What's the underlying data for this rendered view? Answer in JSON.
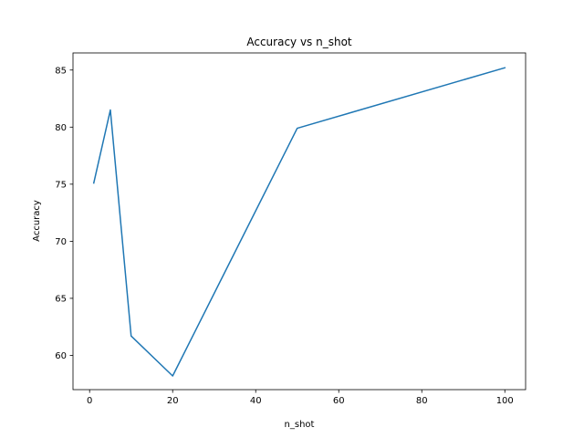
{
  "chart_data": {
    "type": "line",
    "title": "Accuracy vs n_shot",
    "xlabel": "n_shot",
    "ylabel": "Accuracy",
    "xlim": [
      -4,
      105
    ],
    "ylim": [
      57,
      86.5
    ],
    "xticks": [
      0,
      20,
      40,
      60,
      80,
      100
    ],
    "yticks": [
      60,
      65,
      70,
      75,
      80,
      85
    ],
    "grid": false,
    "series": [
      {
        "color": "#1f77b4",
        "x": [
          1,
          5,
          10,
          20,
          50,
          100
        ],
        "y": [
          75.1,
          81.5,
          61.7,
          58.2,
          79.9,
          85.2
        ]
      }
    ]
  }
}
